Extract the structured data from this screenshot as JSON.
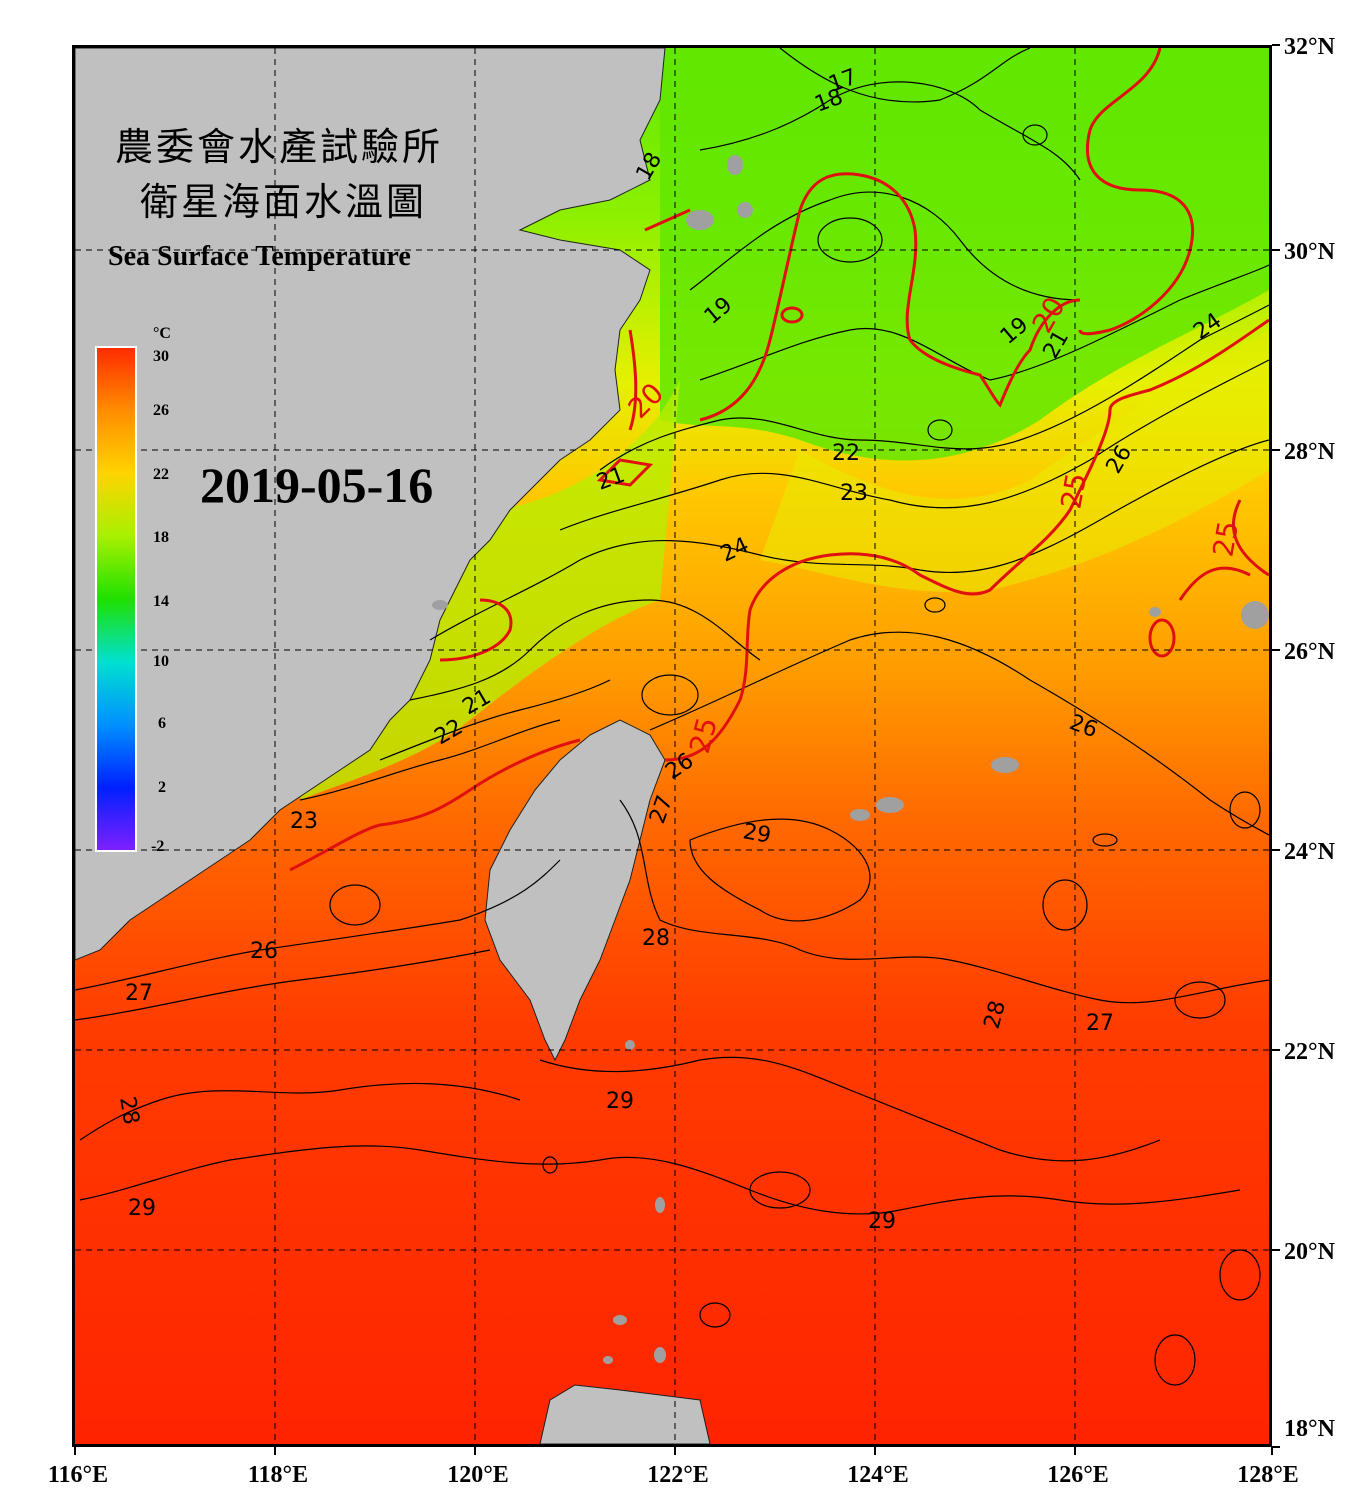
{
  "title": {
    "line1": "農委會水產試驗所",
    "line2": "衛星海面水溫圖",
    "english": "Sea Surface Temperature"
  },
  "date": "2019-05-16",
  "colorbar": {
    "unit": "°C",
    "ticks": [
      "30",
      "26",
      "22",
      "18",
      "14",
      "10",
      "6",
      "2",
      "-2"
    ],
    "stops": [
      "#ff2a00",
      "#ff8c00",
      "#ffd400",
      "#c8f000",
      "#30e000",
      "#00d8d0",
      "#0080ff",
      "#0020ff",
      "#8020ff"
    ]
  },
  "map": {
    "lat_labels": [
      "32°N",
      "30°N",
      "28°N",
      "26°N",
      "24°N",
      "22°N",
      "20°N",
      "18°N"
    ],
    "lon_labels": [
      "116°E",
      "118°E",
      "120°E",
      "122°E",
      "124°E",
      "126°E",
      "128°E"
    ],
    "land_color": "#c0c0c0",
    "contour_labels_black": [
      "17",
      "18",
      "18",
      "19",
      "19",
      "21",
      "21",
      "21",
      "22",
      "22",
      "23",
      "23",
      "24",
      "24",
      "26",
      "26",
      "26",
      "26",
      "27",
      "27",
      "27",
      "28",
      "28",
      "28",
      "29",
      "29",
      "29",
      "29"
    ],
    "contour_labels_red": [
      "20",
      "25",
      "25",
      "25",
      "20"
    ]
  }
}
